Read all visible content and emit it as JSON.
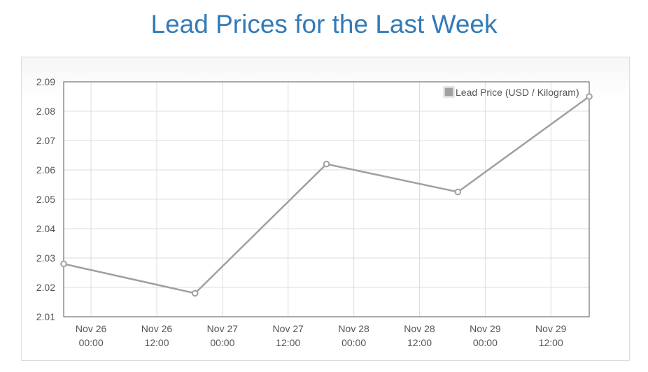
{
  "page": {
    "title": "Lead Prices for the Last Week"
  },
  "chart_data": {
    "type": "line",
    "title": "Lead Prices for the Last Week",
    "xlabel": "",
    "ylabel": "",
    "ylim": [
      2.01,
      2.09
    ],
    "yticks": [
      2.01,
      2.02,
      2.03,
      2.04,
      2.05,
      2.06,
      2.07,
      2.08,
      2.09
    ],
    "xlim": [
      "2023-11-25T19:00",
      "2023-11-29T19:00"
    ],
    "xticks": [
      {
        "x": "2023-11-26T00:00",
        "line1": "Nov 26",
        "line2": "00:00"
      },
      {
        "x": "2023-11-26T12:00",
        "line1": "Nov 26",
        "line2": "12:00"
      },
      {
        "x": "2023-11-27T00:00",
        "line1": "Nov 27",
        "line2": "00:00"
      },
      {
        "x": "2023-11-27T12:00",
        "line1": "Nov 27",
        "line2": "12:00"
      },
      {
        "x": "2023-11-28T00:00",
        "line1": "Nov 28",
        "line2": "00:00"
      },
      {
        "x": "2023-11-28T12:00",
        "line1": "Nov 28",
        "line2": "12:00"
      },
      {
        "x": "2023-11-29T00:00",
        "line1": "Nov 29",
        "line2": "00:00"
      },
      {
        "x": "2023-11-29T12:00",
        "line1": "Nov 29",
        "line2": "12:00"
      }
    ],
    "grid": true,
    "legend_position": "top-right",
    "series": [
      {
        "name": "Lead Price (USD / Kilogram)",
        "color": "#a0a0a0",
        "points": [
          {
            "x": "2023-11-25T19:00",
            "y": 2.028
          },
          {
            "x": "2023-11-26T19:00",
            "y": 2.018
          },
          {
            "x": "2023-11-27T19:00",
            "y": 2.062
          },
          {
            "x": "2023-11-28T19:00",
            "y": 2.0525
          },
          {
            "x": "2023-11-29T19:00",
            "y": 2.085
          }
        ]
      }
    ]
  }
}
